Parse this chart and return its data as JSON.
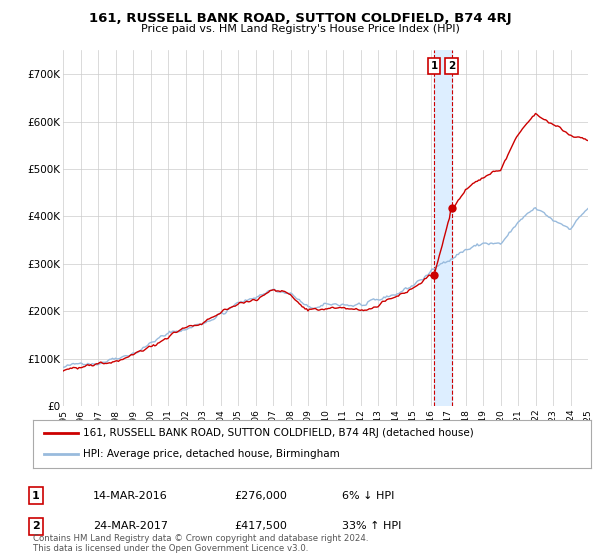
{
  "title": "161, RUSSELL BANK ROAD, SUTTON COLDFIELD, B74 4RJ",
  "subtitle": "Price paid vs. HM Land Registry's House Price Index (HPI)",
  "legend_line1": "161, RUSSELL BANK ROAD, SUTTON COLDFIELD, B74 4RJ (detached house)",
  "legend_line2": "HPI: Average price, detached house, Birmingham",
  "transaction1_date": "14-MAR-2016",
  "transaction1_price": 276000,
  "transaction1_label": "6% ↓ HPI",
  "transaction2_date": "24-MAR-2017",
  "transaction2_price": 417500,
  "transaction2_label": "33% ↑ HPI",
  "footnote": "Contains HM Land Registry data © Crown copyright and database right 2024.\nThis data is licensed under the Open Government Licence v3.0.",
  "line_color_property": "#cc0000",
  "line_color_hpi": "#99bbdd",
  "marker_color": "#cc0000",
  "background_color": "#ffffff",
  "grid_color": "#cccccc",
  "highlight_color": "#ddeeff",
  "dashed_line_color": "#cc0000",
  "ylim": [
    0,
    750000
  ],
  "yticks": [
    0,
    100000,
    200000,
    300000,
    400000,
    500000,
    600000,
    700000
  ],
  "ytick_labels": [
    "£0",
    "£100K",
    "£200K",
    "£300K",
    "£400K",
    "£500K",
    "£600K",
    "£700K"
  ],
  "year_start": 1995,
  "year_end": 2025,
  "transaction1_year": 2016.2,
  "transaction2_year": 2017.2,
  "hpi_anchors_x": [
    1995,
    1996,
    1997,
    1998,
    1999,
    2000,
    2001,
    2002,
    2003,
    2004,
    2005,
    2006,
    2007,
    2008,
    2009,
    2010,
    2011,
    2012,
    2013,
    2014,
    2015,
    2016,
    2017,
    2018,
    2019,
    2020,
    2021,
    2022,
    2023,
    2024,
    2025
  ],
  "hpi_anchors_y": [
    80000,
    85000,
    92000,
    102000,
    115000,
    130000,
    148000,
    162000,
    178000,
    198000,
    215000,
    230000,
    248000,
    240000,
    210000,
    215000,
    218000,
    215000,
    220000,
    235000,
    255000,
    280000,
    305000,
    330000,
    345000,
    340000,
    385000,
    415000,
    390000,
    380000,
    420000
  ],
  "prop_anchors_x": [
    1995,
    1996,
    1997,
    1998,
    1999,
    2000,
    2001,
    2002,
    2003,
    2004,
    2005,
    2006,
    2007,
    2008,
    2009,
    2010,
    2011,
    2012,
    2013,
    2014,
    2015,
    2016.2,
    2017.2,
    2018,
    2019,
    2020,
    2021,
    2022,
    2023,
    2024,
    2025
  ],
  "prop_anchors_y": [
    75000,
    80000,
    88000,
    98000,
    110000,
    125000,
    142000,
    157000,
    172000,
    192000,
    208000,
    222000,
    242000,
    232000,
    200000,
    208000,
    210000,
    208000,
    213000,
    228000,
    248000,
    276000,
    417500,
    470000,
    490000,
    500000,
    570000,
    610000,
    590000,
    570000,
    555000
  ]
}
